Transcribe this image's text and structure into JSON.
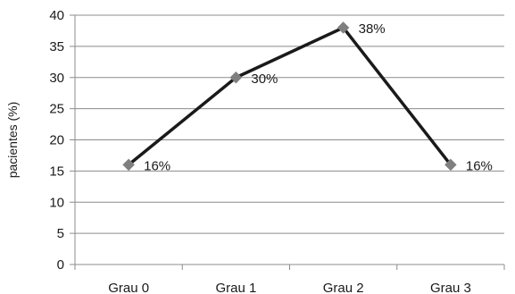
{
  "chart_data": {
    "type": "line",
    "categories": [
      "Grau 0",
      "Grau 1",
      "Grau 2",
      "Grau 3"
    ],
    "series": [
      {
        "values": [
          16,
          30,
          38,
          16
        ],
        "data_labels": [
          "16%",
          "30%",
          "38%",
          "16%"
        ]
      }
    ],
    "title": "",
    "xlabel": "",
    "ylabel": "pacientes (%)",
    "ylim": [
      0,
      40
    ],
    "yticks": [
      0,
      5,
      10,
      15,
      20,
      25,
      30,
      35,
      40
    ],
    "grid": true,
    "legend": "none",
    "colors": {
      "line": "#1a1a1a",
      "marker": "#7f7f7f",
      "grid": "#8c8c8c",
      "axis": "#8c8c8c"
    }
  }
}
